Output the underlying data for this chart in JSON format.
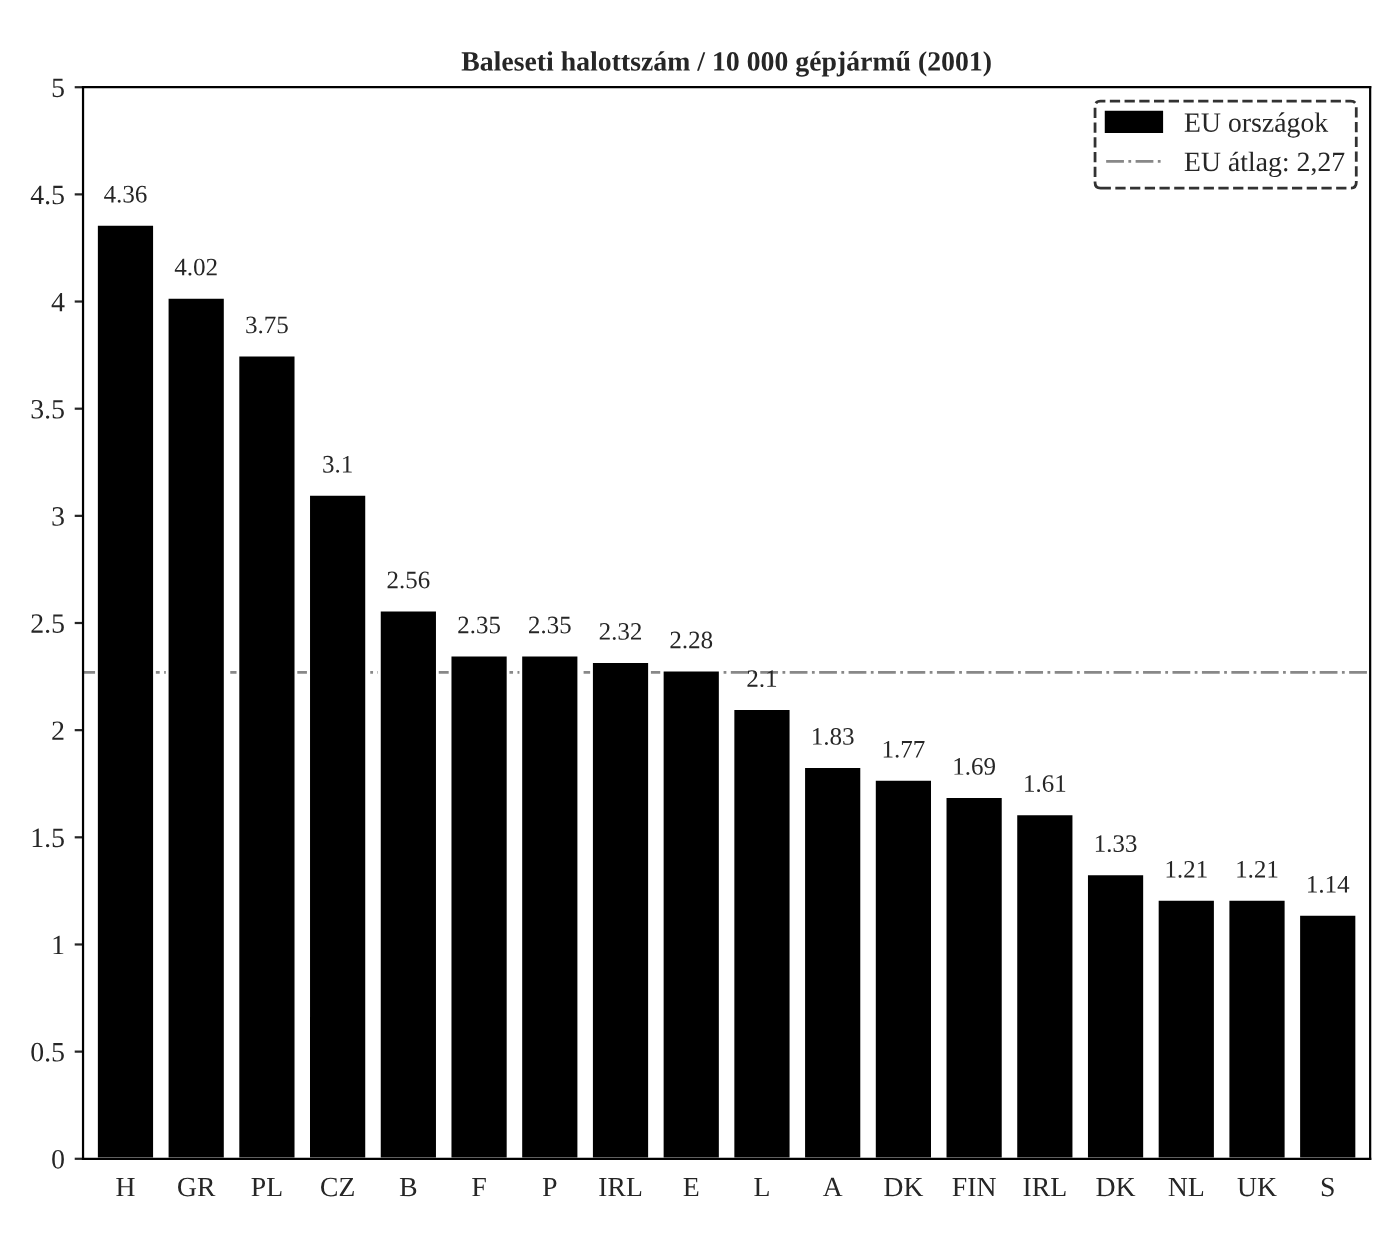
{
  "chart_data": {
    "type": "bar",
    "title": "Baleseti halottszám / 10 000 gépjármű (2001)",
    "categories": [
      "H",
      "GR",
      "PL",
      "CZ",
      "B",
      "F",
      "P",
      "IRL",
      "E",
      "L",
      "A",
      "DK",
      "FIN",
      "IRL",
      "DK",
      "NL",
      "UK",
      "S"
    ],
    "series": [
      {
        "name": "EU országok",
        "color": "#000000",
        "values": [
          4.36,
          4.02,
          3.75,
          3.1,
          2.56,
          2.35,
          2.35,
          2.32,
          2.28,
          2.1,
          1.83,
          1.77,
          1.69,
          1.61,
          1.33,
          1.21,
          1.21,
          1.14
        ]
      }
    ],
    "data_labels": true,
    "ylim": [
      0,
      5
    ],
    "yticks": [
      0,
      0.5,
      1,
      1.5,
      2,
      2.5,
      3,
      3.5,
      4,
      4.5,
      5
    ],
    "ref_lines": [
      {
        "axis": "y",
        "value": 2.27,
        "label": "EU átlag: 2,27",
        "color": "#888888",
        "line_style": "dashdot"
      }
    ],
    "legend": "top right",
    "grid": false
  }
}
